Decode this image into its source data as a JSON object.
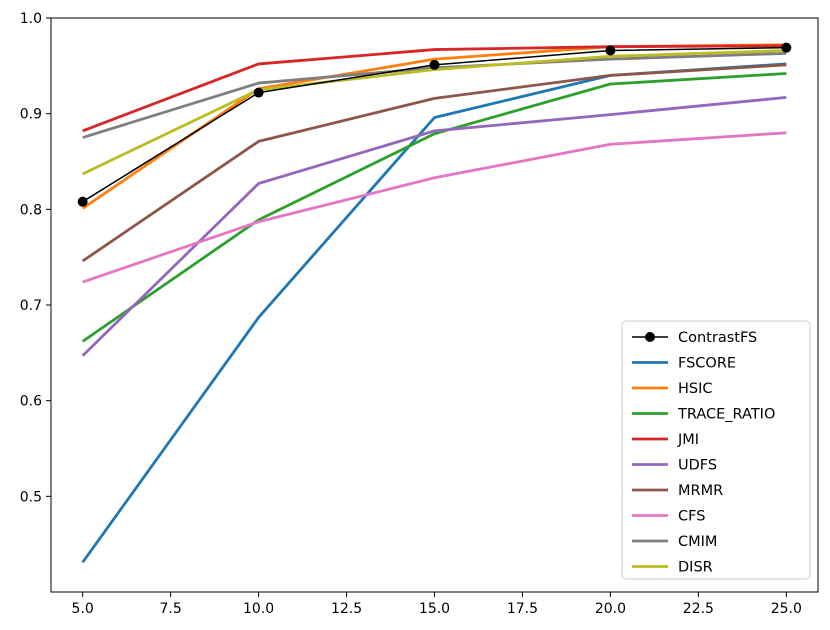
{
  "chart_data": {
    "type": "line",
    "title": "",
    "xlabel": "",
    "ylabel": "",
    "x": [
      5.0,
      10.0,
      15.0,
      20.0,
      25.0
    ],
    "xlim": [
      4.1,
      25.9
    ],
    "ylim": [
      0.4,
      1.0
    ],
    "xticks": [
      5.0,
      7.5,
      10.0,
      12.5,
      15.0,
      17.5,
      20.0,
      22.5,
      25.0
    ],
    "xtick_labels": [
      "5.0",
      "7.5",
      "10.0",
      "12.5",
      "15.0",
      "17.5",
      "20.0",
      "22.5",
      "25.0"
    ],
    "yticks": [
      0.5,
      0.6,
      0.7,
      0.8,
      0.9,
      1.0
    ],
    "ytick_labels": [
      "0.5",
      "0.6",
      "0.7",
      "0.8",
      "0.9",
      "1.0"
    ],
    "grid": false,
    "legend_position": "lower-right",
    "series": [
      {
        "name": "ContrastFS",
        "color": "#000000",
        "marker": "circle",
        "values": [
          0.808,
          0.922,
          0.951,
          0.966,
          0.969
        ]
      },
      {
        "name": "FSCORE",
        "color": "#1f77b4",
        "values": [
          0.431,
          0.687,
          0.896,
          0.94,
          0.952
        ]
      },
      {
        "name": "HSIC",
        "color": "#ff7f0e",
        "values": [
          0.801,
          0.926,
          0.957,
          0.97,
          0.972
        ]
      },
      {
        "name": "TRACE_RATIO",
        "color": "#2ca02c",
        "values": [
          0.662,
          0.789,
          0.879,
          0.931,
          0.942
        ]
      },
      {
        "name": "JMI",
        "color": "#d62728",
        "values": [
          0.882,
          0.952,
          0.967,
          0.97,
          0.971
        ]
      },
      {
        "name": "UDFS",
        "color": "#9467bd",
        "values": [
          0.647,
          0.827,
          0.882,
          0.899,
          0.917
        ]
      },
      {
        "name": "MRMR",
        "color": "#8c564b",
        "values": [
          0.746,
          0.871,
          0.916,
          0.94,
          0.951
        ]
      },
      {
        "name": "CFS",
        "color": "#e377c2",
        "values": [
          0.724,
          0.787,
          0.833,
          0.868,
          0.88
        ]
      },
      {
        "name": "CMIM",
        "color": "#7f7f7f",
        "values": [
          0.875,
          0.932,
          0.948,
          0.957,
          0.963
        ]
      },
      {
        "name": "DISR",
        "color": "#bcbd22",
        "values": [
          0.837,
          0.925,
          0.946,
          0.96,
          0.966
        ]
      }
    ]
  }
}
